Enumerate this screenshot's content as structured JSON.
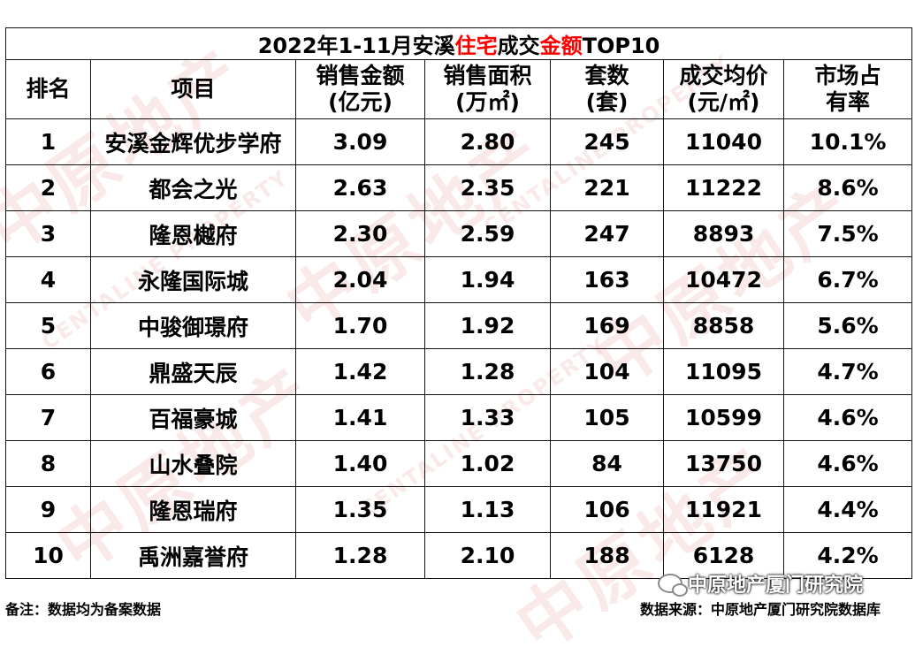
{
  "table": {
    "title_pre": "2022年1-11月安溪",
    "title_red1": "住宅",
    "title_mid": "成交",
    "title_red2": "金额",
    "title_post": "TOP10",
    "headers": {
      "rank": "排名",
      "project": "项目",
      "amount_l1": "销售金额",
      "amount_l2": "(亿元)",
      "area_l1": "销售面积",
      "area_l2": "(万㎡)",
      "units_l1": "套数",
      "units_l2": "(套)",
      "price_l1": "成交均价",
      "price_l2": "(元/㎡)",
      "share_l1": "市场占",
      "share_l2": "有率"
    },
    "rows": [
      {
        "rank": "1",
        "project": "安溪金辉优步学府",
        "amount": "3.09",
        "area": "2.80",
        "units": "245",
        "price": "11040",
        "share": "10.1%"
      },
      {
        "rank": "2",
        "project": "都会之光",
        "amount": "2.63",
        "area": "2.35",
        "units": "221",
        "price": "11222",
        "share": "8.6%"
      },
      {
        "rank": "3",
        "project": "隆恩樾府",
        "amount": "2.30",
        "area": "2.59",
        "units": "247",
        "price": "8893",
        "share": "7.5%"
      },
      {
        "rank": "4",
        "project": "永隆国际城",
        "amount": "2.04",
        "area": "1.94",
        "units": "163",
        "price": "10472",
        "share": "6.7%"
      },
      {
        "rank": "5",
        "project": "中骏御璟府",
        "amount": "1.70",
        "area": "1.92",
        "units": "169",
        "price": "8858",
        "share": "5.6%"
      },
      {
        "rank": "6",
        "project": "鼎盛天辰",
        "amount": "1.42",
        "area": "1.28",
        "units": "104",
        "price": "11095",
        "share": "4.7%"
      },
      {
        "rank": "7",
        "project": "百福豪城",
        "amount": "1.41",
        "area": "1.33",
        "units": "105",
        "price": "10599",
        "share": "4.6%"
      },
      {
        "rank": "8",
        "project": "山水叠院",
        "amount": "1.40",
        "area": "1.02",
        "units": "84",
        "price": "13750",
        "share": "4.6%"
      },
      {
        "rank": "9",
        "project": "隆恩瑞府",
        "amount": "1.35",
        "area": "1.13",
        "units": "106",
        "price": "11921",
        "share": "4.4%"
      },
      {
        "rank": "10",
        "project": "禹洲嘉誉府",
        "amount": "1.28",
        "area": "2.10",
        "units": "188",
        "price": "6128",
        "share": "4.2%"
      }
    ]
  },
  "footer": {
    "note": "备注：数据均为备案数据",
    "source": "数据来源：中原地产厦门研究院数据库"
  },
  "watermark": {
    "text_cn": "中原地产",
    "text_en": "CENTALINE PROPERTY",
    "color": "#cd2828"
  },
  "badge": {
    "text": "中原地产厦门研究院",
    "icon": "wechat-icon"
  }
}
